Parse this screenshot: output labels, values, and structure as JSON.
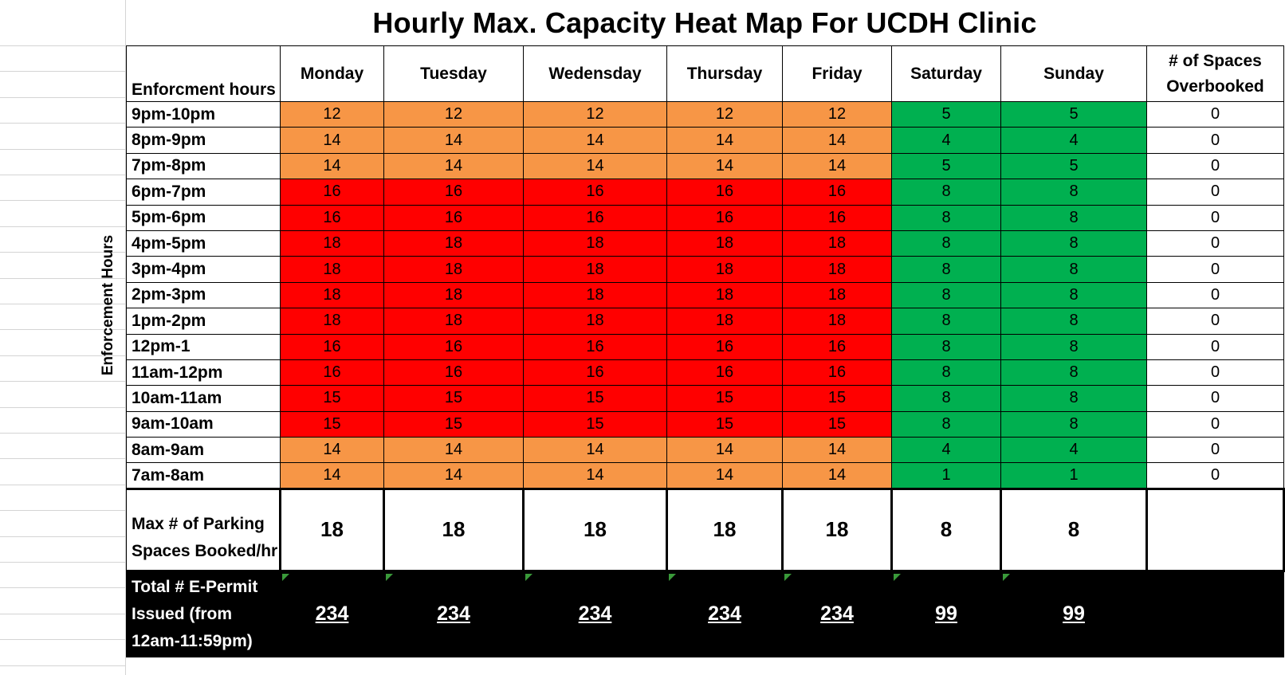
{
  "title": "Hourly Max. Capacity Heat Map For UCDH Clinic",
  "side_label": "Enforcement Hours",
  "colors": {
    "high": "#ff0000",
    "mid": "#f79646",
    "low": "#00b050"
  },
  "chart_data": {
    "type": "heatmap",
    "title": "Hourly Max. Capacity Heat Map For UCDH Clinic",
    "row_header": "Enforcment hours",
    "columns": [
      "Monday",
      "Tuesday",
      "Wedensday",
      "Thursday",
      "Friday",
      "Saturday",
      "Sunday"
    ],
    "extra_column": "# of Spaces Overbooked",
    "rows": [
      {
        "hour": "9pm-10pm",
        "values": [
          12,
          12,
          12,
          12,
          12,
          5,
          5
        ],
        "levels": [
          "mid",
          "mid",
          "mid",
          "mid",
          "mid",
          "low",
          "low"
        ],
        "overbooked": "0"
      },
      {
        "hour": "8pm-9pm",
        "values": [
          14,
          14,
          14,
          14,
          14,
          4,
          4
        ],
        "levels": [
          "mid",
          "mid",
          "mid",
          "mid",
          "mid",
          "low",
          "low"
        ],
        "overbooked": "0"
      },
      {
        "hour": "7pm-8pm",
        "values": [
          14,
          14,
          14,
          14,
          14,
          5,
          5
        ],
        "levels": [
          "mid",
          "mid",
          "mid",
          "mid",
          "mid",
          "low",
          "low"
        ],
        "overbooked": "0"
      },
      {
        "hour": "6pm-7pm",
        "values": [
          16,
          16,
          16,
          16,
          16,
          8,
          8
        ],
        "levels": [
          "high",
          "high",
          "high",
          "high",
          "high",
          "low",
          "low"
        ],
        "overbooked": "0"
      },
      {
        "hour": "5pm-6pm",
        "values": [
          16,
          16,
          16,
          16,
          16,
          8,
          8
        ],
        "levels": [
          "high",
          "high",
          "high",
          "high",
          "high",
          "low",
          "low"
        ],
        "overbooked": "0"
      },
      {
        "hour": "4pm-5pm",
        "values": [
          18,
          18,
          18,
          18,
          18,
          8,
          8
        ],
        "levels": [
          "high",
          "high",
          "high",
          "high",
          "high",
          "low",
          "low"
        ],
        "overbooked": "0"
      },
      {
        "hour": "3pm-4pm",
        "values": [
          18,
          18,
          18,
          18,
          18,
          8,
          8
        ],
        "levels": [
          "high",
          "high",
          "high",
          "high",
          "high",
          "low",
          "low"
        ],
        "overbooked": "0"
      },
      {
        "hour": "2pm-3pm",
        "values": [
          18,
          18,
          18,
          18,
          18,
          8,
          8
        ],
        "levels": [
          "high",
          "high",
          "high",
          "high",
          "high",
          "low",
          "low"
        ],
        "overbooked": "0"
      },
      {
        "hour": "1pm-2pm",
        "values": [
          18,
          18,
          18,
          18,
          18,
          8,
          8
        ],
        "levels": [
          "high",
          "high",
          "high",
          "high",
          "high",
          "low",
          "low"
        ],
        "overbooked": "0"
      },
      {
        "hour": "12pm-1",
        "values": [
          16,
          16,
          16,
          16,
          16,
          8,
          8
        ],
        "levels": [
          "high",
          "high",
          "high",
          "high",
          "high",
          "low",
          "low"
        ],
        "overbooked": "0"
      },
      {
        "hour": "11am-12pm",
        "values": [
          16,
          16,
          16,
          16,
          16,
          8,
          8
        ],
        "levels": [
          "high",
          "high",
          "high",
          "high",
          "high",
          "low",
          "low"
        ],
        "overbooked": "0"
      },
      {
        "hour": "10am-11am",
        "values": [
          15,
          15,
          15,
          15,
          15,
          8,
          8
        ],
        "levels": [
          "high",
          "high",
          "high",
          "high",
          "high",
          "low",
          "low"
        ],
        "overbooked": "0"
      },
      {
        "hour": "9am-10am",
        "values": [
          15,
          15,
          15,
          15,
          15,
          8,
          8
        ],
        "levels": [
          "high",
          "high",
          "high",
          "high",
          "high",
          "low",
          "low"
        ],
        "overbooked": "0"
      },
      {
        "hour": "8am-9am",
        "values": [
          14,
          14,
          14,
          14,
          14,
          4,
          4
        ],
        "levels": [
          "mid",
          "mid",
          "mid",
          "mid",
          "mid",
          "low",
          "low"
        ],
        "overbooked": "0"
      },
      {
        "hour": "7am-8am",
        "values": [
          14,
          14,
          14,
          14,
          14,
          1,
          1
        ],
        "levels": [
          "mid",
          "mid",
          "mid",
          "mid",
          "mid",
          "low",
          "low"
        ],
        "overbooked": "0"
      }
    ],
    "max_row": {
      "label": "Max # of Parking Spaces Booked/hr",
      "values": [
        "18",
        "18",
        "18",
        "18",
        "18",
        "8",
        "8"
      ]
    },
    "total_row": {
      "label": "Total # E-Permit Issued (from 12am-11:59pm)",
      "values": [
        "234",
        "234",
        "234",
        "234",
        "234",
        "99",
        "99"
      ]
    }
  }
}
